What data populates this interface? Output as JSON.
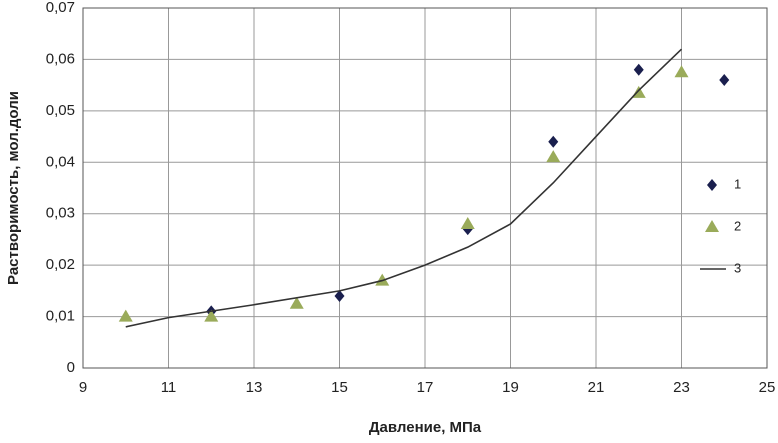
{
  "chart_data": {
    "type": "scatter",
    "xlabel": "Давление, МПа",
    "ylabel": "Растворимость, мол.доли",
    "xlim": [
      9,
      25
    ],
    "xticks": [
      9,
      11,
      13,
      15,
      17,
      19,
      21,
      23,
      25
    ],
    "ylim": [
      0,
      0.07
    ],
    "yticks": [
      0,
      {
        "value": 0.01,
        "label": "0,01"
      },
      {
        "value": 0.02,
        "label": "0,02"
      },
      {
        "value": 0.03,
        "label": "0,03"
      },
      {
        "value": 0.04,
        "label": "0,04"
      },
      {
        "value": 0.05,
        "label": "0,05"
      },
      {
        "value": 0.06,
        "label": "0,06"
      },
      {
        "value": 0.07,
        "label": "0,07"
      }
    ],
    "grid": true,
    "legend": "right",
    "series": [
      {
        "name": "1",
        "marker": "diamond",
        "color": "#1a1f4e",
        "x": [
          12,
          15,
          18,
          20,
          22,
          24
        ],
        "values": [
          0.011,
          0.014,
          0.027,
          0.044,
          0.058,
          0.056
        ]
      },
      {
        "name": "2",
        "marker": "triangle",
        "color": "#9aab5a",
        "x": [
          10,
          12,
          14,
          16,
          18,
          20,
          22,
          23
        ],
        "values": [
          0.01,
          0.01,
          0.0125,
          0.017,
          0.028,
          0.041,
          0.0535,
          0.0575
        ]
      },
      {
        "name": "3",
        "marker": "line",
        "color": "#333333",
        "x": [
          10,
          11,
          13,
          15,
          16,
          17,
          18,
          19,
          20,
          21,
          22,
          23
        ],
        "values": [
          0.008,
          0.0098,
          0.0123,
          0.015,
          0.017,
          0.02,
          0.0235,
          0.028,
          0.036,
          0.045,
          0.054,
          0.062
        ]
      }
    ]
  }
}
